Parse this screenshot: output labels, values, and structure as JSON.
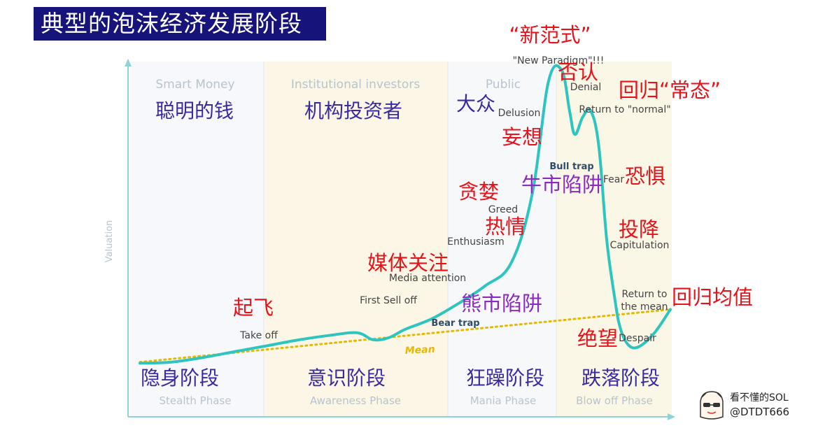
{
  "title": "典型的泡沫经济发展阶段",
  "colors": {
    "curve": "#2ec4c0",
    "mean": "#e6b800",
    "title_bg": "#16147a",
    "red_annotation": "#e8121b",
    "purple_annotation": "#8a2ac0",
    "phase_cn": "#3a2aa0"
  },
  "chart_data": {
    "type": "line",
    "title": "典型的泡沫经济发展阶段",
    "ylabel": "Valuation",
    "xlabel": "",
    "grid": false,
    "phases": [
      {
        "en": "Smart Money",
        "cn": "聪明的钱",
        "phase_cn": "隐身阶段",
        "phase_en": "Stealth Phase"
      },
      {
        "en": "Institutional investors",
        "cn": "机构投资者",
        "phase_cn": "意识阶段",
        "phase_en": "Awareness Phase"
      },
      {
        "en": "Public",
        "cn": "大众",
        "phase_cn": "狂躁阶段",
        "phase_en": "Mania Phase"
      },
      {
        "en": "",
        "cn": "",
        "phase_cn": "跌落阶段",
        "phase_en": "Blow off Phase"
      }
    ],
    "series": [
      {
        "name": "",
        "x": [
          0,
          6,
          12,
          18,
          24,
          30,
          36,
          41,
          44,
          47,
          50,
          55,
          60,
          65,
          70,
          74,
          77,
          79.5,
          81,
          82,
          83.5,
          85,
          86.5,
          88,
          89.5,
          90.5,
          92,
          94,
          97,
          100
        ],
        "y": [
          4,
          5,
          9,
          14,
          19,
          24,
          28,
          30,
          24,
          26,
          33,
          42,
          55,
          70,
          90,
          150,
          245,
          255,
          220,
          200,
          215,
          220,
          190,
          110,
          60,
          35,
          20,
          18,
          30,
          50
        ]
      },
      {
        "name": "Mean",
        "x": [
          0,
          100
        ],
        "y": [
          5,
          50
        ]
      }
    ],
    "annotations": [
      {
        "en": "Take off",
        "cn": "起飞"
      },
      {
        "en": "First Sell off",
        "cn": ""
      },
      {
        "en": "Media attention",
        "cn": "媒体关注"
      },
      {
        "en": "Bear trap",
        "cn": "熊市陷阱"
      },
      {
        "en": "Enthusiasm",
        "cn": "热情"
      },
      {
        "en": "Greed",
        "cn": "贪婪"
      },
      {
        "en": "Delusion",
        "cn": "妄想"
      },
      {
        "en": "\"New Paradigm\"!!!",
        "cn": "“新范式”"
      },
      {
        "en": "Denial",
        "cn": "否认"
      },
      {
        "en": "Bull trap",
        "cn": "牛市陷阱"
      },
      {
        "en": "Return to \"normal\"",
        "cn": "回归“常态”"
      },
      {
        "en": "Fear",
        "cn": "恐惧"
      },
      {
        "en": "Capitulation",
        "cn": "投降"
      },
      {
        "en": "Despair",
        "cn": "绝望"
      },
      {
        "en": "Return to",
        "cn": ""
      },
      {
        "en": "the mean",
        "cn": "回归均值"
      }
    ]
  },
  "watermark": {
    "line1": "看不懂的SOL",
    "line2": "@DTDT666"
  }
}
